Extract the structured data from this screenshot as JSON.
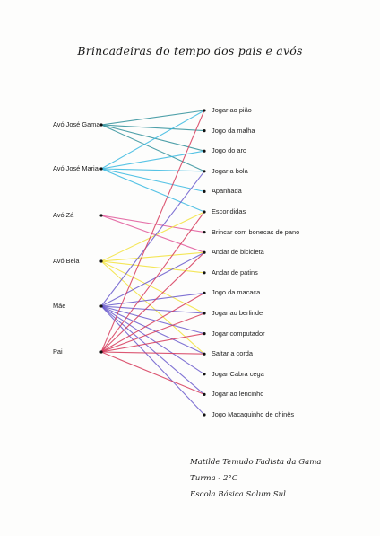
{
  "title": "Brincadeiras do tempo dos pais e avós",
  "people": [
    "Avó José Gama",
    "Avó José Maria",
    "Avó Zá",
    "Avó Bela",
    "Mãe",
    "Pai"
  ],
  "games": [
    "Jogar ao pião",
    "Jogo da malha",
    "Jogo do aro",
    "Jogar a bola",
    "Apanhada",
    "Escondidas",
    "Brincar com bonecas de pano",
    "Andar de bicicleta",
    "Andar de patins",
    "Jogo da macaca",
    "Jogar ao berlinde",
    "Jogar computador",
    "Saltar a corda",
    "Jogar Cabra cega",
    "Jogar ao lencinho",
    "Jogo Macaquinho de chinês"
  ],
  "person_colors": [
    "#2f8f9a",
    "#38b8e0",
    "#e0589a",
    "#f2e23a",
    "#6a5acd",
    "#d63a5a"
  ],
  "connections": [
    {
      "person": 0,
      "games": [
        0,
        1,
        2,
        3
      ]
    },
    {
      "person": 1,
      "games": [
        0,
        2,
        3,
        4,
        5
      ]
    },
    {
      "person": 2,
      "games": [
        6,
        7
      ]
    },
    {
      "person": 3,
      "games": [
        5,
        7,
        8,
        10,
        12
      ]
    },
    {
      "person": 4,
      "games": [
        3,
        7,
        9,
        10,
        11,
        12,
        13,
        14,
        15
      ]
    },
    {
      "person": 5,
      "games": [
        0,
        5,
        7,
        9,
        10,
        11,
        12,
        14
      ]
    }
  ],
  "signature": {
    "name": "Matilde Temudo Fadista da Gama",
    "class": "Turma - 2°C",
    "school": "Escola Básica Solum Sul"
  }
}
